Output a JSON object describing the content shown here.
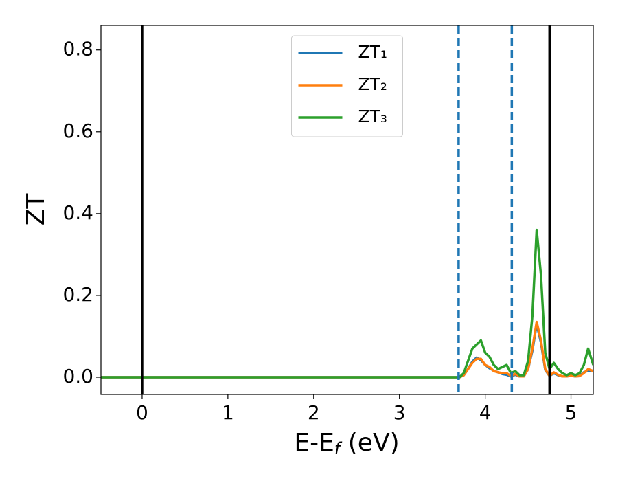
{
  "chart_data": {
    "type": "line",
    "xlabel": [
      "E-E",
      "f",
      " (eV)"
    ],
    "ylabel": "ZT",
    "xlim": [
      -0.48,
      5.26
    ],
    "ylim": [
      -0.042,
      0.86
    ],
    "xticks": [
      0,
      1,
      2,
      3,
      4,
      5
    ],
    "yticks": [
      {
        "value": 0,
        "label": "0.0"
      },
      0.2,
      0.4,
      0.6,
      0.8
    ],
    "legend": "upper center",
    "vlines": [
      {
        "x": 0,
        "color": "#000000",
        "style": "solid"
      },
      {
        "x": 4.75,
        "color": "#000000",
        "style": "solid"
      },
      {
        "x": 3.69,
        "color": "#1f77b4",
        "style": "dashed"
      },
      {
        "x": 4.31,
        "color": "#1f77b4",
        "style": "dashed"
      }
    ],
    "x": [
      -0.48,
      3.6,
      3.7,
      3.75,
      3.8,
      3.85,
      3.9,
      3.95,
      4.0,
      4.05,
      4.1,
      4.15,
      4.2,
      4.25,
      4.3,
      4.35,
      4.4,
      4.45,
      4.5,
      4.55,
      4.6,
      4.65,
      4.7,
      4.75,
      4.8,
      4.85,
      4.9,
      4.95,
      5.0,
      5.05,
      5.1,
      5.15,
      5.2,
      5.26
    ],
    "series": [
      {
        "name": "ZT₁",
        "color": "#1f77b4",
        "values": [
          0,
          0,
          0,
          0.005,
          0.02,
          0.038,
          0.048,
          0.042,
          0.03,
          0.022,
          0.016,
          0.012,
          0.008,
          0.006,
          0.002,
          0.006,
          0.002,
          0.002,
          0.02,
          0.065,
          0.13,
          0.085,
          0.018,
          0.003,
          0.01,
          0.005,
          0.002,
          0.002,
          0.004,
          0.002,
          0.003,
          0.012,
          0.016,
          0.015
        ]
      },
      {
        "name": "ZT₂",
        "color": "#ff7f0e",
        "values": [
          0,
          0,
          0,
          0.005,
          0.02,
          0.035,
          0.045,
          0.045,
          0.03,
          0.025,
          0.015,
          0.012,
          0.01,
          0.01,
          0.003,
          0.008,
          0.002,
          0.002,
          0.02,
          0.07,
          0.135,
          0.09,
          0.02,
          0.003,
          0.012,
          0.006,
          0.002,
          0.002,
          0.004,
          0.002,
          0.003,
          0.01,
          0.02,
          0.015
        ]
      },
      {
        "name": "ZT₃",
        "color": "#2ca02c",
        "values": [
          0,
          0,
          0,
          0.01,
          0.04,
          0.07,
          0.08,
          0.09,
          0.06,
          0.05,
          0.03,
          0.02,
          0.025,
          0.03,
          0.01,
          0.015,
          0.005,
          0.005,
          0.04,
          0.15,
          0.36,
          0.25,
          0.06,
          0.02,
          0.035,
          0.02,
          0.01,
          0.005,
          0.01,
          0.005,
          0.01,
          0.03,
          0.07,
          0.03
        ]
      }
    ]
  }
}
